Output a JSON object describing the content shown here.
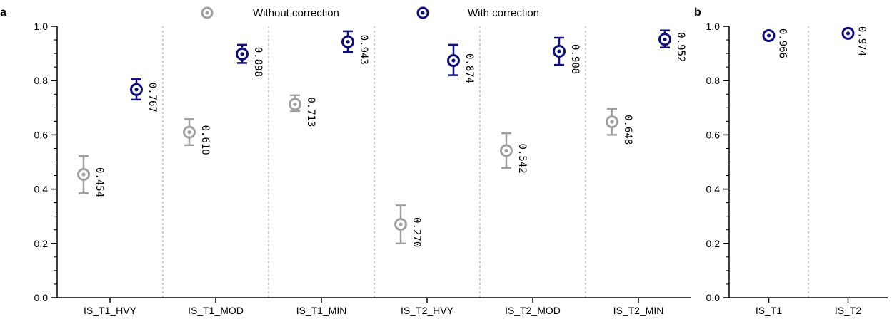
{
  "chart_data": [
    {
      "panel_label": "a",
      "type": "scatter",
      "categories": [
        "IS_T1_HVY",
        "IS_T1_MOD",
        "IS_T1_MIN",
        "IS_T2_HVY",
        "IS_T2_MOD",
        "IS_T2_MIN"
      ],
      "ylim": [
        0.0,
        1.0
      ],
      "yticks": [
        "0.0",
        "0.2",
        "0.4",
        "0.6",
        "0.8",
        "1.0"
      ],
      "grid": false,
      "legend_position": "top",
      "series": [
        {
          "name": "Without correction",
          "color": "#a0a0a0",
          "values": [
            0.454,
            0.61,
            0.713,
            0.27,
            0.542,
            0.648
          ],
          "labels": [
            "0.454",
            "0.610",
            "0.713",
            "0.270",
            "0.542",
            "0.648"
          ],
          "err_low": [
            0.385,
            0.562,
            0.688,
            0.2,
            0.478,
            0.6
          ],
          "err_high": [
            0.522,
            0.658,
            0.746,
            0.34,
            0.606,
            0.696
          ]
        },
        {
          "name": "With correction",
          "color": "#0d0d7e",
          "values": [
            0.767,
            0.898,
            0.943,
            0.874,
            0.908,
            0.952
          ],
          "labels": [
            "0.767",
            "0.898",
            "0.943",
            "0.874",
            "0.908",
            "0.952"
          ],
          "err_low": [
            0.73,
            0.865,
            0.905,
            0.82,
            0.858,
            0.922
          ],
          "err_high": [
            0.805,
            0.932,
            0.982,
            0.932,
            0.958,
            0.985
          ]
        }
      ]
    },
    {
      "panel_label": "b",
      "type": "scatter",
      "categories": [
        "IS_T1",
        "IS_T2"
      ],
      "ylim": [
        0.0,
        1.0
      ],
      "yticks": [
        "0.0",
        "0.2",
        "0.4",
        "0.6",
        "0.8",
        "1.0"
      ],
      "grid": false,
      "series": [
        {
          "name": "With correction",
          "color": "#0d0d7e",
          "values": [
            0.966,
            0.974
          ],
          "labels": [
            "0.966",
            "0.974"
          ],
          "err_low": [
            0.952,
            0.962
          ],
          "err_high": [
            0.98,
            0.986
          ]
        }
      ]
    }
  ]
}
